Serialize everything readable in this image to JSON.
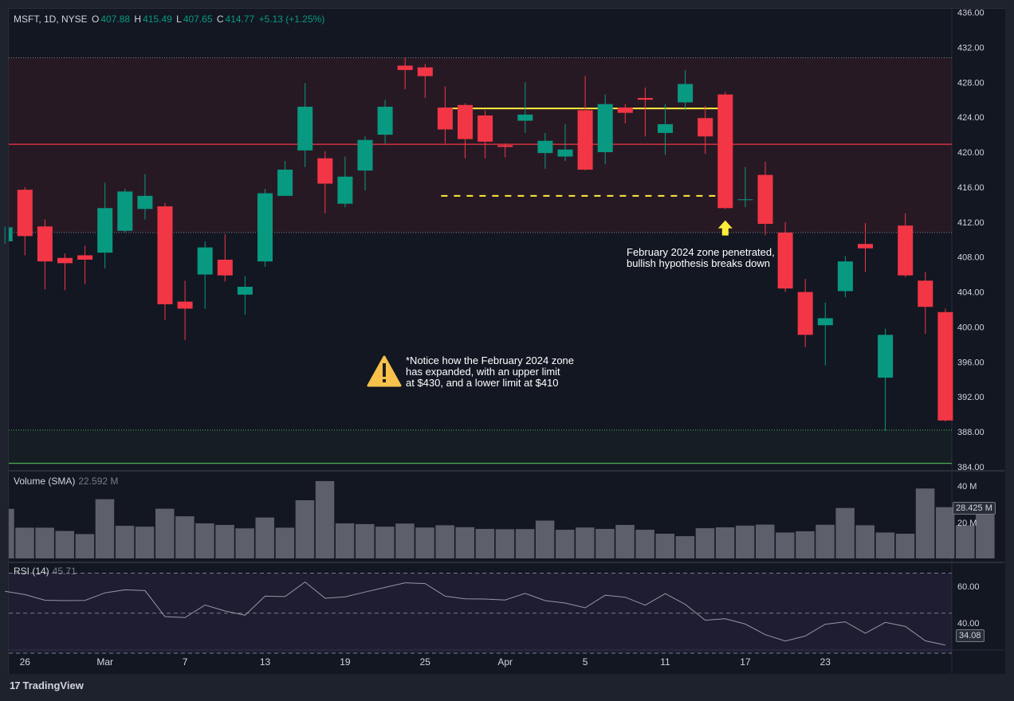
{
  "legend": {
    "symbol": "MSFT, 1D, NYSE",
    "o_label": "O",
    "o_value": "407.88",
    "h_label": "H",
    "h_value": "415.49",
    "l_label": "L",
    "l_value": "407.65",
    "c_label": "C",
    "c_value": "414.77",
    "change": "+5.13 (+1.25%)"
  },
  "volume_pane": {
    "title": "Volume (SMA)",
    "value": "22.592 M",
    "current_tag": "28.425 M",
    "axis": [
      "40 M",
      "20 M"
    ]
  },
  "rsi_pane": {
    "title": "RSI (14)",
    "value": "45.71",
    "current_tag": "34.08",
    "axis": [
      "60.00",
      "40.00"
    ]
  },
  "annotations": {
    "breakdown_note": "February 2024 zone penetrated,\nbullish hypothesis breaks down",
    "zone_note": "*Notice how the February 2024 zone\nhas expanded, with an upper limit\nat $430, and a lower limit at $410"
  },
  "branding": {
    "logo_mark": "17",
    "logo_text": "TradingView"
  },
  "colors": {
    "up": "#089981",
    "down": "#f23645",
    "zone_red": "#f23645",
    "zone_green": "#2e7d32",
    "highlight": "#ffeb3b"
  },
  "chart_data": {
    "type": "candlestick",
    "price_axis_ticks": [
      384,
      388,
      392,
      396,
      400,
      404,
      408,
      412,
      416,
      420,
      424,
      428,
      432,
      436
    ],
    "price_axis_labels": [
      "384.00",
      "388.00",
      "392.00",
      "396.00",
      "400.00",
      "404.00",
      "408.00",
      "412.00",
      "416.00",
      "420.00",
      "424.00",
      "428.00",
      "432.00",
      "436.00"
    ],
    "ylim": [
      384,
      436.5
    ],
    "x_axis_labels": [
      {
        "label": "26",
        "i": 1
      },
      {
        "label": "Mar",
        "i": 5
      },
      {
        "label": "7",
        "i": 9
      },
      {
        "label": "13",
        "i": 13
      },
      {
        "label": "19",
        "i": 17
      },
      {
        "label": "25",
        "i": 21
      },
      {
        "label": "Apr",
        "i": 25
      },
      {
        "label": "5",
        "i": 29
      },
      {
        "label": "11",
        "i": 33
      },
      {
        "label": "17",
        "i": 37
      },
      {
        "label": "23",
        "i": 41
      }
    ],
    "candles": [
      {
        "o": 409.8,
        "h": 411.5,
        "l": 409.5,
        "c": 411.4
      },
      {
        "o": 415.7,
        "h": 416.0,
        "l": 408.2,
        "c": 410.4
      },
      {
        "o": 411.5,
        "h": 412.3,
        "l": 404.3,
        "c": 407.5
      },
      {
        "o": 407.9,
        "h": 408.4,
        "l": 404.2,
        "c": 407.3
      },
      {
        "o": 408.2,
        "h": 409.3,
        "l": 404.9,
        "c": 407.7
      },
      {
        "o": 408.5,
        "h": 416.5,
        "l": 406.7,
        "c": 413.6
      },
      {
        "o": 411.0,
        "h": 415.8,
        "l": 410.8,
        "c": 415.5
      },
      {
        "o": 413.5,
        "h": 417.5,
        "l": 412.3,
        "c": 415.0
      },
      {
        "o": 413.8,
        "h": 414.2,
        "l": 400.8,
        "c": 402.6
      },
      {
        "o": 402.9,
        "h": 405.3,
        "l": 398.5,
        "c": 402.1
      },
      {
        "o": 406.0,
        "h": 409.8,
        "l": 402.1,
        "c": 409.1
      },
      {
        "o": 407.7,
        "h": 410.6,
        "l": 405.2,
        "c": 405.9
      },
      {
        "o": 403.7,
        "h": 405.8,
        "l": 401.4,
        "c": 404.6
      },
      {
        "o": 407.5,
        "h": 415.8,
        "l": 406.9,
        "c": 415.3
      },
      {
        "o": 415.0,
        "h": 419.0,
        "l": 415.0,
        "c": 418.0
      },
      {
        "o": 420.2,
        "h": 427.9,
        "l": 418.3,
        "c": 425.2
      },
      {
        "o": 419.3,
        "h": 420.1,
        "l": 413.0,
        "c": 416.4
      },
      {
        "o": 414.1,
        "h": 419.5,
        "l": 413.7,
        "c": 417.2
      },
      {
        "o": 417.9,
        "h": 421.8,
        "l": 415.6,
        "c": 421.4
      },
      {
        "o": 422.0,
        "h": 426.0,
        "l": 421.0,
        "c": 425.2
      },
      {
        "o": 429.9,
        "h": 430.8,
        "l": 427.2,
        "c": 429.4
      },
      {
        "o": 429.7,
        "h": 430.1,
        "l": 426.2,
        "c": 428.7
      },
      {
        "o": 425.1,
        "h": 427.5,
        "l": 421.0,
        "c": 422.6
      },
      {
        "o": 425.4,
        "h": 425.6,
        "l": 419.3,
        "c": 421.5
      },
      {
        "o": 424.2,
        "h": 424.8,
        "l": 419.3,
        "c": 421.2
      },
      {
        "o": 420.8,
        "h": 421.0,
        "l": 419.4,
        "c": 420.6
      },
      {
        "o": 423.6,
        "h": 428.0,
        "l": 422.2,
        "c": 424.3
      },
      {
        "o": 419.9,
        "h": 422.2,
        "l": 418.1,
        "c": 421.3
      },
      {
        "o": 419.5,
        "h": 423.2,
        "l": 419.0,
        "c": 420.3
      },
      {
        "o": 424.8,
        "h": 428.7,
        "l": 417.9,
        "c": 418.0
      },
      {
        "o": 420.0,
        "h": 426.6,
        "l": 418.6,
        "c": 425.5
      },
      {
        "o": 425.1,
        "h": 425.5,
        "l": 423.3,
        "c": 424.5
      },
      {
        "o": 426.2,
        "h": 427.4,
        "l": 421.8,
        "c": 426.0
      },
      {
        "o": 422.2,
        "h": 425.5,
        "l": 419.7,
        "c": 423.2
      },
      {
        "o": 425.7,
        "h": 429.4,
        "l": 424.8,
        "c": 427.8
      },
      {
        "o": 423.9,
        "h": 425.3,
        "l": 419.8,
        "c": 421.8
      },
      {
        "o": 426.6,
        "h": 426.9,
        "l": 413.5,
        "c": 413.6
      },
      {
        "o": 414.6,
        "h": 418.3,
        "l": 413.7,
        "c": 414.6
      },
      {
        "o": 417.4,
        "h": 418.9,
        "l": 410.5,
        "c": 411.8
      },
      {
        "o": 410.8,
        "h": 412.0,
        "l": 404.0,
        "c": 404.4
      },
      {
        "o": 404.0,
        "h": 405.5,
        "l": 397.7,
        "c": 399.1
      },
      {
        "o": 400.2,
        "h": 402.8,
        "l": 395.6,
        "c": 401.0
      },
      {
        "o": 404.1,
        "h": 408.1,
        "l": 403.4,
        "c": 407.5
      },
      {
        "o": 409.5,
        "h": 411.9,
        "l": 406.3,
        "c": 409.0
      },
      {
        "o": 394.2,
        "h": 399.8,
        "l": 388.1,
        "c": 399.1
      },
      {
        "o": 411.6,
        "h": 413.0,
        "l": 405.7,
        "c": 405.9
      },
      {
        "o": 405.3,
        "h": 406.3,
        "l": 399.2,
        "c": 402.3
      },
      {
        "o": 401.7,
        "h": 402.1,
        "l": 389.2,
        "c": 389.3
      }
    ],
    "volume_axis": [
      20,
      40
    ],
    "volume_ylim": [
      0,
      48
    ],
    "volumes": [
      28.7,
      17.8,
      17.8,
      15.9,
      14.1,
      34.3,
      18.9,
      18.4,
      28.8,
      24.4,
      20.3,
      19.4,
      17.4,
      23.7,
      17.8,
      33.7,
      44.8,
      20.3,
      19.9,
      18.4,
      20.2,
      17.9,
      19.2,
      18.1,
      17.1,
      16.9,
      17.0,
      21.9,
      16.6,
      17.9,
      17.1,
      19.4,
      16.6,
      14.3,
      12.9,
      17.5,
      18.0,
      19.0,
      19.6,
      15.0,
      15.7,
      19.5,
      29.2,
      19.2,
      15.0,
      14.3,
      40.5,
      29.7,
      19.2,
      28.4
    ],
    "rsi_ylim": [
      32,
      75
    ],
    "rsi_levels": [
      70,
      50,
      30
    ],
    "rsi": [
      61,
      59.3,
      56.5,
      56.3,
      56.4,
      60.2,
      61.7,
      61.3,
      48.3,
      47.8,
      54.1,
      51.1,
      49.0,
      58.5,
      58.3,
      65.6,
      57.5,
      58.2,
      60.6,
      62.9,
      65.2,
      64.8,
      58.5,
      57.2,
      57.1,
      56.6,
      59.9,
      56.3,
      55.1,
      52.7,
      59.0,
      58.0,
      54.0,
      59.8,
      54.4,
      46.5,
      47.2,
      44.6,
      39.3,
      36.1,
      38.6,
      44.5,
      45.7,
      40.0,
      45.4,
      43.4,
      36.2,
      34.08
    ],
    "horizontal_lines": [
      {
        "price": 420.9,
        "color": "#f23645",
        "style": "solid"
      },
      {
        "price": 430.8,
        "color": "#787b86",
        "style": "dotted"
      },
      {
        "price": 410.8,
        "color": "#787b86",
        "style": "dotted"
      },
      {
        "price": 388.2,
        "color": "#4caf50",
        "style": "dotted"
      },
      {
        "price": 384.4,
        "color": "#4caf50",
        "style": "solid"
      }
    ],
    "zones": [
      {
        "from": 410.8,
        "to": 430.8,
        "color": "#f23645"
      },
      {
        "from": 384.4,
        "to": 388.2,
        "color": "#2e7d32"
      }
    ],
    "trend_lines": [
      {
        "price": 425.0,
        "from_i": 22,
        "to_i": 36,
        "color": "#ffeb3b",
        "style": "solid"
      },
      {
        "price": 415.0,
        "from_i": 22,
        "to_i": 36,
        "color": "#ffeb3b",
        "style": "dashed"
      }
    ]
  }
}
